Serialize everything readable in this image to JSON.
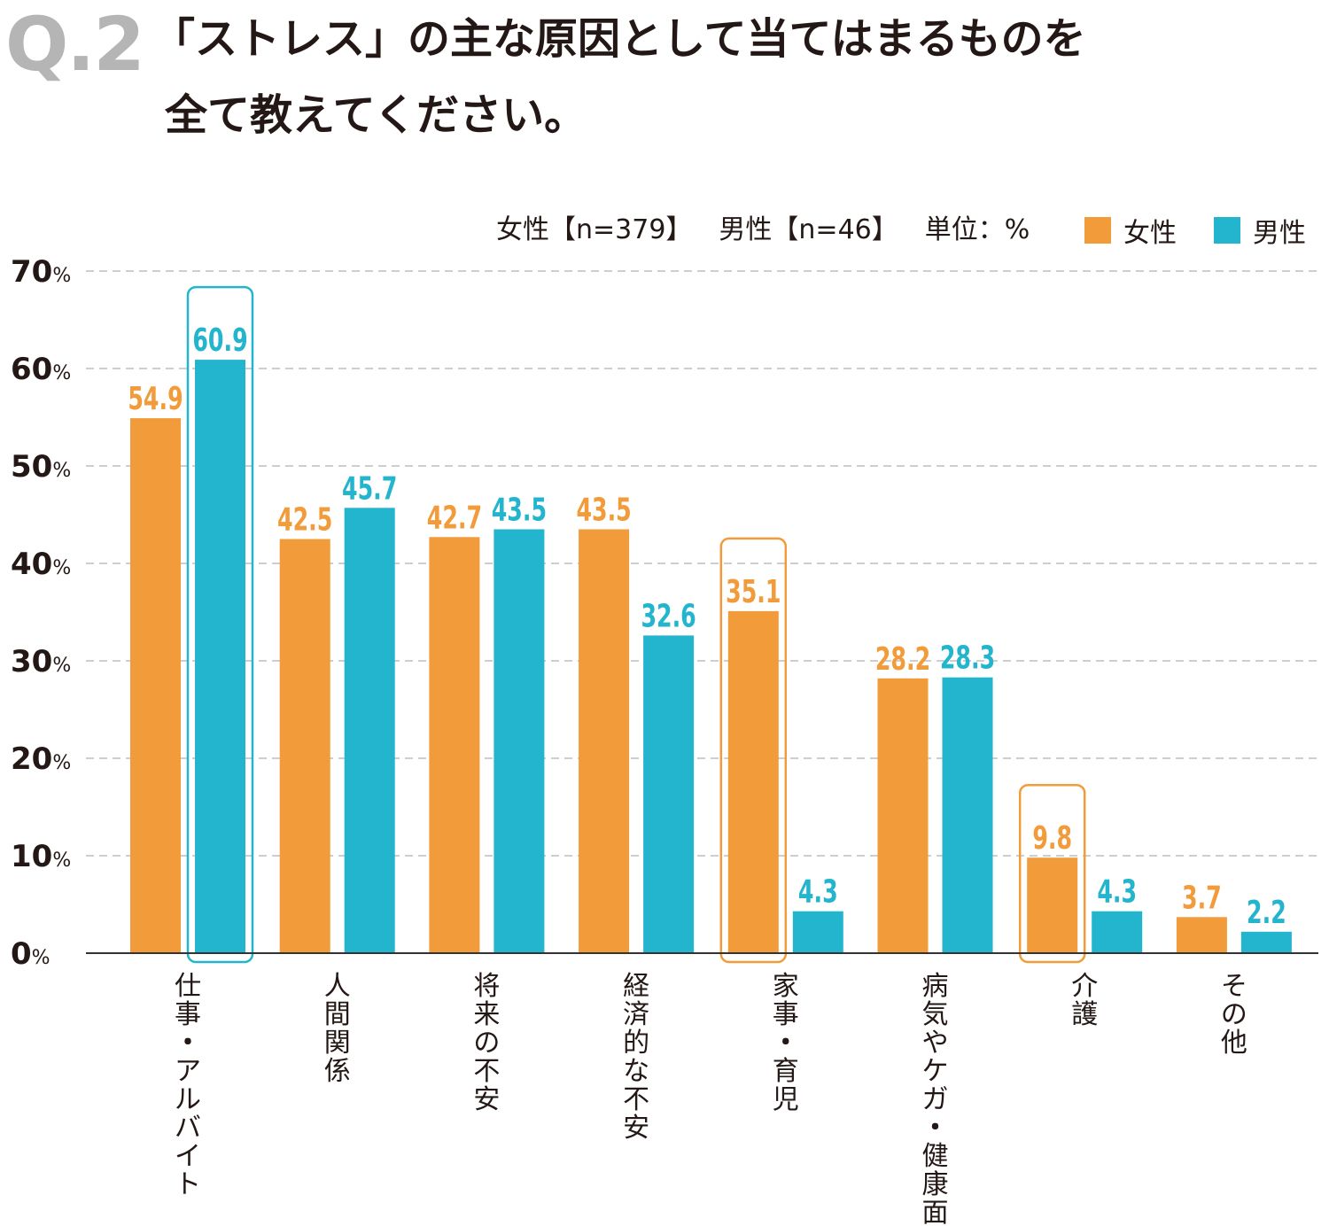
{
  "header": {
    "question_number": "Q.2",
    "title_line_1": "「ストレス」の主な原因として当てはまるものを",
    "title_line_2": "全て教えてください。"
  },
  "meta": {
    "female_sample": "女性【n=379】",
    "male_sample": "男性【n=46】",
    "unit": "単位：%"
  },
  "legend": [
    {
      "label": "女性",
      "color": "#f29b3a"
    },
    {
      "label": "男性",
      "color": "#22b5cd"
    }
  ],
  "chart_data": {
    "type": "bar",
    "title": "「ストレス」の主な原因として当てはまるものを全て教えてください。",
    "ylim": [
      0,
      70
    ],
    "yticks": [
      0,
      10,
      20,
      30,
      40,
      50,
      60,
      70
    ],
    "ytick_unit": "%",
    "grid": true,
    "legend_position": "top-right",
    "categories": [
      "仕事・アルバイト",
      "人間関係",
      "将来の不安",
      "経済的な不安",
      "家事・育児",
      "病気やケガ・健康面",
      "介護",
      "その他"
    ],
    "series": [
      {
        "name": "女性",
        "color": "#f29b3a",
        "values": [
          54.9,
          42.5,
          42.7,
          43.5,
          35.1,
          28.2,
          9.8,
          3.7
        ]
      },
      {
        "name": "男性",
        "color": "#22b5cd",
        "values": [
          60.9,
          45.7,
          43.5,
          32.6,
          4.3,
          28.3,
          4.3,
          2.2
        ]
      }
    ],
    "highlights": [
      {
        "category_index": 0,
        "series_index": 1
      },
      {
        "category_index": 4,
        "series_index": 0
      },
      {
        "category_index": 6,
        "series_index": 0
      }
    ]
  }
}
